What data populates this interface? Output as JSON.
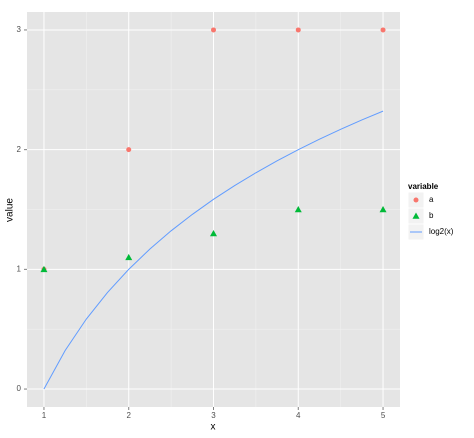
{
  "chart_data": {
    "type": "scatter",
    "x_label": "x",
    "y_label": "value",
    "x": [
      1,
      2,
      3,
      4,
      5
    ],
    "xlim": [
      0.8,
      5.2
    ],
    "ylim": [
      -0.15,
      3.15
    ],
    "xticks": [
      1,
      2,
      3,
      4,
      5
    ],
    "yticks": [
      0,
      1,
      2,
      3
    ],
    "grid": true,
    "legend_title": "variable",
    "legend": "right",
    "series": [
      {
        "name": "a",
        "color": "#f8766d",
        "shape": "circle",
        "values": [
          1,
          2,
          3,
          3,
          3
        ]
      },
      {
        "name": "b",
        "color": "#00ba38",
        "shape": "triangle",
        "values": [
          1,
          1.1,
          1.3,
          1.5,
          1.5
        ]
      },
      {
        "name": "log2(x)",
        "color": "#619cff",
        "shape": "line",
        "x": [
          1,
          1.25,
          1.5,
          1.75,
          2,
          2.25,
          2.5,
          2.75,
          3,
          3.25,
          3.5,
          3.75,
          4,
          4.25,
          4.5,
          4.75,
          5
        ],
        "values": [
          0,
          0.322,
          0.585,
          0.807,
          1,
          1.17,
          1.322,
          1.459,
          1.585,
          1.7,
          1.807,
          1.907,
          2,
          2.087,
          2.17,
          2.248,
          2.322
        ]
      }
    ]
  }
}
